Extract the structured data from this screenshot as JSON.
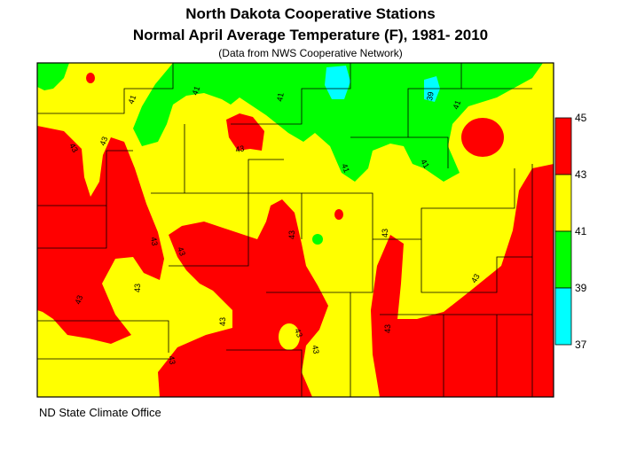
{
  "header": {
    "title_line1": "North Dakota Cooperative Stations",
    "title_line2": "Normal April Average Temperature (F), 1981- 2010",
    "subtitle": "(Data from NWS Cooperative Network)"
  },
  "credit": "ND State Climate Office",
  "legend": {
    "classes": [
      {
        "from": 43,
        "to": 45,
        "color": "#ff0000"
      },
      {
        "from": 41,
        "to": 43,
        "color": "#ffff00"
      },
      {
        "from": 39,
        "to": 41,
        "color": "#00ff00"
      },
      {
        "from": 37,
        "to": 39,
        "color": "#00ffff"
      }
    ],
    "tick_labels": [
      "45",
      "43",
      "41",
      "39",
      "37"
    ]
  },
  "contour_labels": [
    "41",
    "41",
    "41",
    "39",
    "41",
    "43",
    "43",
    "43",
    "43",
    "43",
    "43",
    "43",
    "43",
    "43",
    "43",
    "43",
    "43",
    "43",
    "43",
    "43",
    "41",
    "41"
  ],
  "colors": {
    "band_43_45": "#ff0000",
    "band_41_43": "#ffff00",
    "band_39_41": "#00ff00",
    "band_37_39": "#00ffff",
    "county_lines": "#000000"
  }
}
